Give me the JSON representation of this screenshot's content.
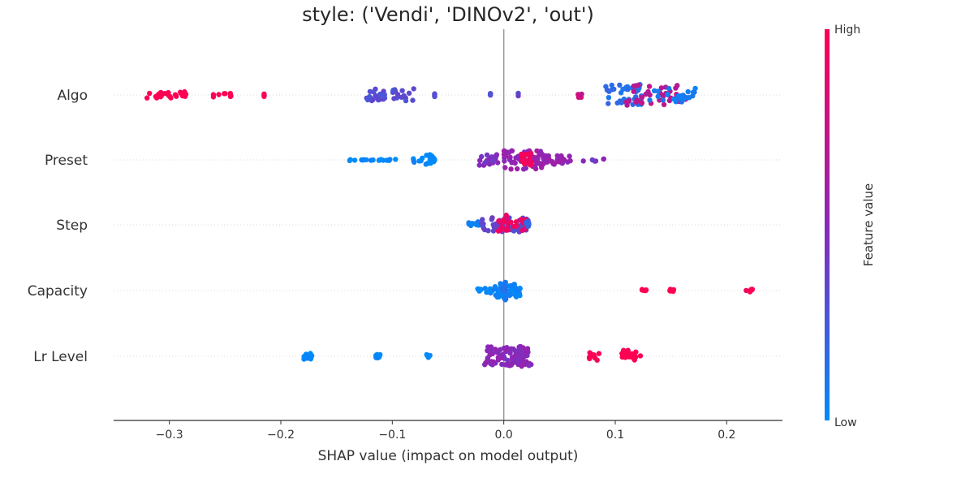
{
  "chart_data": {
    "type": "scatter",
    "subtype": "shap-beeswarm",
    "title": "style: ('Vendi', 'DINOv2', 'out')",
    "xlabel": "SHAP value (impact on model output)",
    "xlim": [
      -0.35,
      0.25
    ],
    "xticks": [
      -0.3,
      -0.2,
      -0.1,
      0.0,
      0.1,
      0.2
    ],
    "xtick_labels": [
      "−0.3",
      "−0.2",
      "−0.1",
      "0.0",
      "0.1",
      "0.2"
    ],
    "colorbar": {
      "label": "Feature value",
      "high_label": "High",
      "low_label": "Low",
      "low_color": "#008bfb",
      "mid_color": "#8b27b9",
      "high_color": "#ff0052"
    },
    "zero_line_color": "#999999",
    "features": [
      {
        "name": "Algo",
        "clusters": [
          {
            "x": -0.32,
            "x2": -0.283,
            "n": 26,
            "c": 1.0,
            "spread": 0.11
          },
          {
            "x": -0.262,
            "x2": -0.243,
            "n": 8,
            "c": 1.0,
            "spread": 0.06
          },
          {
            "x": -0.215,
            "n": 4,
            "c": 1.0,
            "spread": 0.06
          },
          {
            "x": -0.124,
            "x2": -0.106,
            "n": 22,
            "c": 0.3,
            "spread": 0.18
          },
          {
            "x": -0.1,
            "x2": -0.08,
            "n": 16,
            "c": 0.3,
            "spread": 0.2
          },
          {
            "x": -0.062,
            "n": 4,
            "c": 0.3,
            "spread": 0.06
          },
          {
            "x": -0.012,
            "n": 3,
            "c": 0.3,
            "spread": 0.05
          },
          {
            "x": 0.013,
            "n": 3,
            "c": 0.35,
            "spread": 0.05
          },
          {
            "x": 0.065,
            "x2": 0.07,
            "n": 8,
            "c": 0.75,
            "spread": 0.1
          },
          {
            "x": 0.09,
            "x2": 0.125,
            "n": 40,
            "c": 0.15,
            "spread": 0.32
          },
          {
            "x": 0.11,
            "x2": 0.165,
            "n": 40,
            "c": 0.7,
            "spread": 0.32
          },
          {
            "x": 0.13,
            "x2": 0.172,
            "n": 24,
            "c": 0.08,
            "spread": 0.22
          }
        ]
      },
      {
        "name": "Preset",
        "clusters": [
          {
            "x": -0.14,
            "x2": -0.095,
            "n": 18,
            "c": 0.0,
            "spread": 0.02
          },
          {
            "x": -0.082,
            "x2": -0.072,
            "n": 6,
            "c": 0.0,
            "spread": 0.08
          },
          {
            "x": -0.07,
            "x2": -0.062,
            "n": 14,
            "c": 0.0,
            "spread": 0.16
          },
          {
            "x": -0.022,
            "x2": -0.005,
            "n": 20,
            "c": 0.45,
            "spread": 0.18
          },
          {
            "x": 0.0,
            "x2": 0.035,
            "n": 60,
            "c": 0.55,
            "spread": 0.3
          },
          {
            "x": 0.015,
            "x2": 0.025,
            "n": 20,
            "c": 0.95,
            "spread": 0.22
          },
          {
            "x": 0.035,
            "x2": 0.06,
            "n": 30,
            "c": 0.55,
            "spread": 0.14
          },
          {
            "x": 0.07,
            "x2": 0.093,
            "n": 6,
            "c": 0.45,
            "spread": 0.04
          }
        ]
      },
      {
        "name": "Step",
        "clusters": [
          {
            "x": -0.033,
            "x2": -0.02,
            "n": 12,
            "c": 0.05,
            "spread": 0.12
          },
          {
            "x": -0.02,
            "x2": 0.022,
            "n": 60,
            "c": 0.35,
            "spread": 0.22
          },
          {
            "x": -0.005,
            "x2": 0.02,
            "n": 24,
            "c": 0.9,
            "spread": 0.2
          },
          {
            "x": 0.02,
            "x2": 0.023,
            "n": 8,
            "c": 0.2,
            "spread": 0.1
          },
          {
            "x": 0.002,
            "x2": 0.004,
            "n": 6,
            "c": 0.9,
            "spread": 0.32
          }
        ]
      },
      {
        "name": "Capacity",
        "clusters": [
          {
            "x": -0.025,
            "x2": -0.01,
            "n": 14,
            "c": 0.0,
            "spread": 0.08
          },
          {
            "x": -0.01,
            "x2": 0.015,
            "n": 50,
            "c": 0.03,
            "spread": 0.22
          },
          {
            "x": -0.002,
            "x2": 0.002,
            "n": 12,
            "c": 0.1,
            "spread": 0.34
          },
          {
            "x": 0.12,
            "x2": 0.128,
            "n": 5,
            "c": 1.0,
            "spread": 0.04
          },
          {
            "x": 0.149,
            "x2": 0.153,
            "n": 8,
            "c": 1.0,
            "spread": 0.04
          },
          {
            "x": 0.213,
            "x2": 0.224,
            "n": 8,
            "c": 1.0,
            "spread": 0.04
          }
        ]
      },
      {
        "name": "Lr Level",
        "clusters": [
          {
            "x": -0.18,
            "x2": -0.172,
            "n": 14,
            "c": 0.0,
            "spread": 0.1
          },
          {
            "x": -0.117,
            "x2": -0.11,
            "n": 8,
            "c": 0.0,
            "spread": 0.06
          },
          {
            "x": -0.07,
            "x2": -0.065,
            "n": 6,
            "c": 0.0,
            "spread": 0.06
          },
          {
            "x": -0.018,
            "x2": 0.025,
            "n": 90,
            "c": 0.5,
            "spread": 0.3
          },
          {
            "x": 0.008,
            "x2": 0.018,
            "n": 14,
            "c": 0.5,
            "spread": 0.38
          },
          {
            "x": 0.075,
            "x2": 0.087,
            "n": 10,
            "c": 1.0,
            "spread": 0.12
          },
          {
            "x": 0.106,
            "x2": 0.123,
            "n": 20,
            "c": 1.0,
            "spread": 0.2
          }
        ]
      }
    ]
  }
}
